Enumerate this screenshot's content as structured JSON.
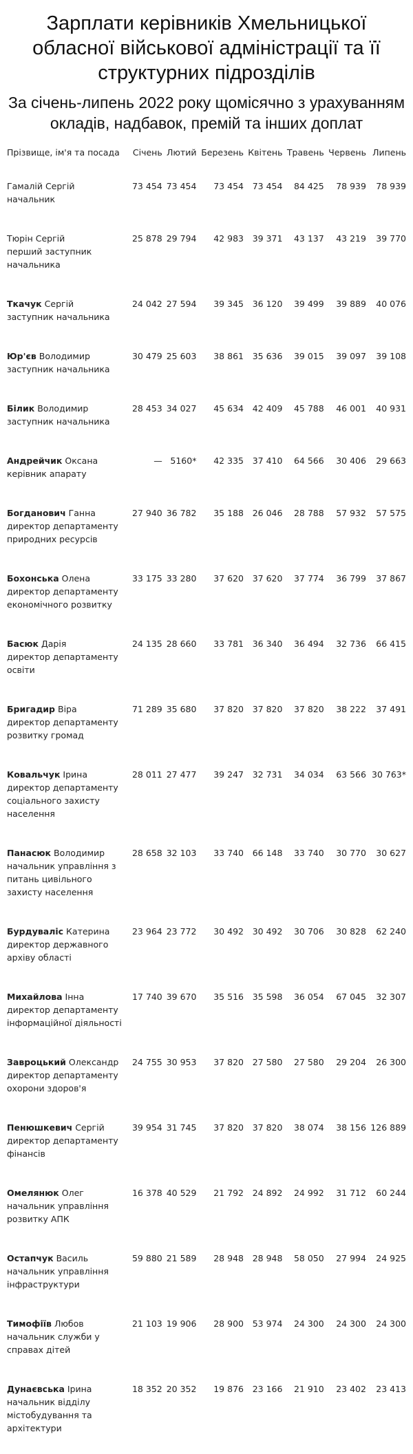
{
  "header": {
    "title": "Зарплати керівників Хмельницької обласної військової адміністрації та її структурних підрозділів",
    "subtitle": "За січень-липень 2022 року щомісячно з урахуванням окладів, надбавок, премій та інших доплат"
  },
  "table": {
    "columns": [
      "Прізвище, ім'я та посада",
      "Січень",
      "Лютий",
      "Березень",
      "Квітень",
      "Травень",
      "Червень",
      "Липень"
    ],
    "rows": [
      {
        "surname": "Гамалій",
        "name": "Сергій",
        "position": "начальник",
        "values": [
          "73 454",
          "73 454",
          "73 454",
          "73 454",
          "84 425",
          "78 939",
          "78 939"
        ]
      },
      {
        "surname": "Тюрін",
        "name": "Сергій",
        "position": "перший заступник начальника",
        "values": [
          "25 878",
          "29 794",
          "42 983",
          "39 371",
          "43 137",
          "43 219",
          "39 770"
        ]
      },
      {
        "surname": "Ткачук",
        "name": "Сергій",
        "position": "заступник начальника",
        "values": [
          "24 042",
          "27 594",
          "39 345",
          "36 120",
          "39 499",
          "39 889",
          "40 076"
        ]
      },
      {
        "surname": "Юр'єв",
        "name": "Володимир",
        "position": "заступник начальника",
        "values": [
          "30 479",
          "25 603",
          "38 861",
          "35 636",
          "39 015",
          "39 097",
          "39 108"
        ]
      },
      {
        "surname": "Білик",
        "name": "Володимир",
        "position": "заступник начальника",
        "values": [
          "28 453",
          "34 027",
          "45 634",
          "42 409",
          "45 788",
          "46 001",
          "40 931"
        ]
      },
      {
        "surname": "Андрейчик",
        "name": "Оксана",
        "position": "керівник апарату",
        "values": [
          "—",
          "5160*",
          "42 335",
          "37 410",
          "64 566",
          "30 406",
          "29 663"
        ]
      },
      {
        "surname": "Богданович",
        "name": "Ганна",
        "position": "директор департаменту природних ресурсів",
        "values": [
          "27 940",
          "36 782",
          "35 188",
          "26 046",
          "28 788",
          "57 932",
          "57 575"
        ]
      },
      {
        "surname": "Бохонська",
        "name": "Олена",
        "position": "директор департаменту економічного розвитку",
        "values": [
          "33 175",
          "33 280",
          "37 620",
          "37 620",
          "37 774",
          "36 799",
          "37 867"
        ]
      },
      {
        "surname": "Басюк",
        "name": "Дарія",
        "position": "директор департаменту освіти",
        "values": [
          "24 135",
          "28 660",
          "33 781",
          "36 340",
          "36 494",
          "32 736",
          "66 415"
        ]
      },
      {
        "surname": "Бригадир",
        "name": "Віра",
        "position": "директор департаменту розвитку громад",
        "values": [
          "71 289",
          "35 680",
          "37 820",
          "37 820",
          "37 820",
          "38 222",
          "37 491"
        ]
      },
      {
        "surname": "Ковальчук",
        "name": "Ірина",
        "position": "директор департаменту соціального захисту населення",
        "values": [
          "28 011",
          "27 477",
          "39 247",
          "32 731",
          "34 034",
          "63 566",
          "30 763*"
        ]
      },
      {
        "surname": "Панасюк",
        "name": "Володимир",
        "position": "начальник управління з питань цивільного захисту населення",
        "values": [
          "28 658",
          "32 103",
          "33 740",
          "66 148",
          "33 740",
          "30 770",
          "30 627"
        ]
      },
      {
        "surname": "Бурдувалiс",
        "name": "Катерина",
        "position": "директор державного архіву області",
        "values": [
          "23 964",
          "23 772",
          "30 492",
          "30 492",
          "30 706",
          "30 828",
          "62 240"
        ]
      },
      {
        "surname": "Михайлова",
        "name": "Інна",
        "position": "директор департаменту інформаційної діяльності",
        "values": [
          "17 740",
          "39 670",
          "35 516",
          "35 598",
          "36 054",
          "67 045",
          "32 307"
        ]
      },
      {
        "surname": "Завроцький",
        "name": "Олександр",
        "position": "директор департаменту охорони здоров'я",
        "values": [
          "24 755",
          "30 953",
          "37 820",
          "27 580",
          "27 580",
          "29 204",
          "26 300"
        ]
      },
      {
        "surname": "Пенюшкевич",
        "name": "Сергій",
        "position": "директор департаменту фінансів",
        "values": [
          "39 954",
          "31 745",
          "37 820",
          "37 820",
          "38 074",
          "38 156",
          "126 889"
        ]
      },
      {
        "surname": "Омелянюк",
        "name": "Олег",
        "position": "начальник управління розвитку АПК",
        "values": [
          "16 378",
          "40 529",
          "21 792",
          "24 892",
          "24 992",
          "31 712",
          "60 244"
        ]
      },
      {
        "surname": "Остапчук",
        "name": "Василь",
        "position": "начальник управління інфраструктури",
        "values": [
          "59 880",
          "21 589",
          "28 948",
          "28 948",
          "58 050",
          "27 994",
          "24 925"
        ]
      },
      {
        "surname": "Тимофіїв",
        "name": "Любов",
        "position": "начальник служби у справах дітей",
        "values": [
          "21 103",
          "19 906",
          "28 900",
          "53 974",
          "24 300",
          "24 300",
          "24 300"
        ]
      },
      {
        "surname": "Дунаєвська",
        "name": "Ірина",
        "position": "начальник відділу містобудування та архітектури",
        "values": [
          "18 352",
          "20 352",
          "19 876",
          "23 166",
          "21 910",
          "23 402",
          "23 413"
        ]
      }
    ]
  }
}
